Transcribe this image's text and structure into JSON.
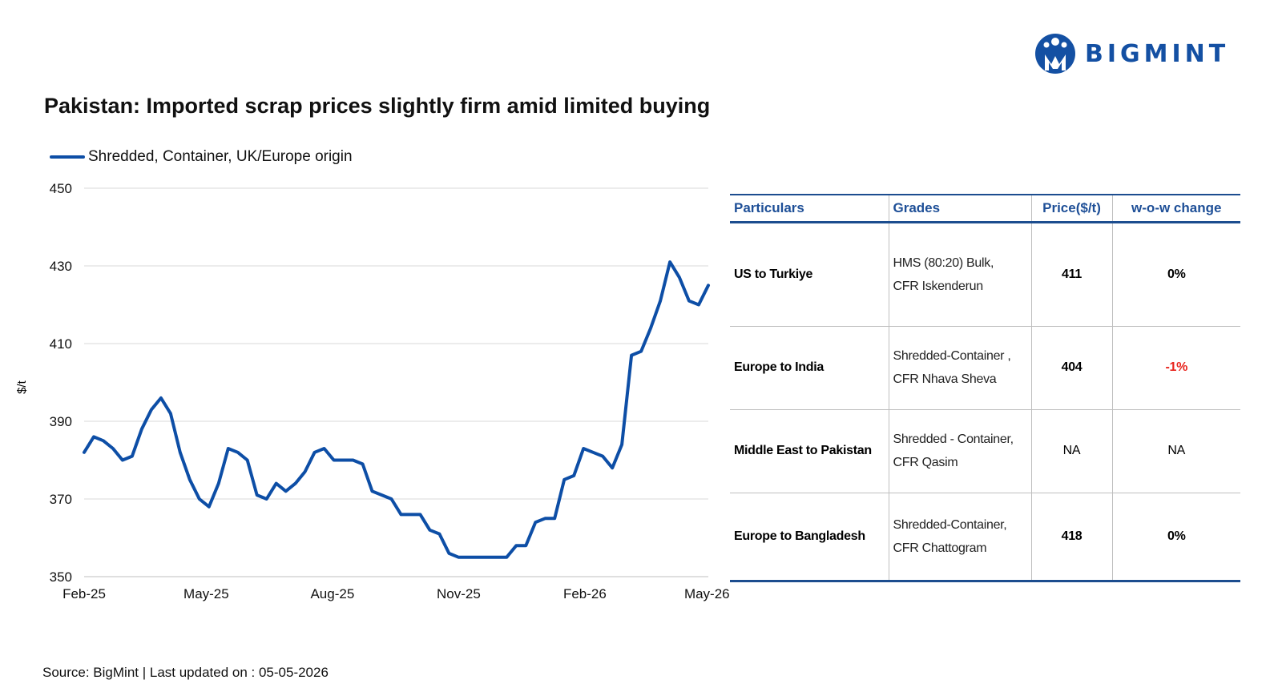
{
  "brand": {
    "name": "BIGMINT",
    "color": "#1450a3",
    "icon": "bigmint-logo-icon"
  },
  "title": "Pakistan: Imported scrap prices slightly firm amid limited buying",
  "source_note": "Source: BigMint | Last updated on : 05-05-2026",
  "chart_data": {
    "type": "line",
    "title": "Pakistan: Imported scrap prices slightly firm amid limited buying",
    "ylabel": "$/t",
    "xlabel": "",
    "ylim": [
      350,
      450
    ],
    "yticks": [
      "450",
      "430",
      "410",
      "390",
      "370",
      "350"
    ],
    "xticks": [
      "Feb-25",
      "May-25",
      "Aug-25",
      "Nov-25",
      "Feb-26",
      "May-26"
    ],
    "grid": "horizontal",
    "legend": "top-left",
    "series": [
      {
        "name": "Shredded, Container, UK/Europe origin",
        "color": "#0d4ea6",
        "x": [
          "2025-02-01",
          "2025-02-08",
          "2025-02-15",
          "2025-02-22",
          "2025-03-01",
          "2025-03-08",
          "2025-03-15",
          "2025-03-22",
          "2025-03-29",
          "2025-04-05",
          "2025-04-12",
          "2025-04-19",
          "2025-04-26",
          "2025-05-03",
          "2025-05-10",
          "2025-05-17",
          "2025-05-24",
          "2025-05-31",
          "2025-06-07",
          "2025-06-14",
          "2025-06-21",
          "2025-06-28",
          "2025-07-05",
          "2025-07-12",
          "2025-07-19",
          "2025-07-26",
          "2025-08-02",
          "2025-08-09",
          "2025-08-16",
          "2025-08-23",
          "2025-08-30",
          "2025-09-06",
          "2025-09-13",
          "2025-09-20",
          "2025-09-27",
          "2025-10-04",
          "2025-10-11",
          "2025-10-18",
          "2025-10-25",
          "2025-11-01",
          "2025-11-08",
          "2025-11-15",
          "2025-11-22",
          "2025-11-29",
          "2025-12-06",
          "2025-12-13",
          "2025-12-20",
          "2025-12-27",
          "2026-01-03",
          "2026-01-10",
          "2026-01-17",
          "2026-01-24",
          "2026-01-31",
          "2026-02-07",
          "2026-02-14",
          "2026-02-21",
          "2026-02-28",
          "2026-03-07",
          "2026-03-14",
          "2026-03-21",
          "2026-03-28",
          "2026-04-04",
          "2026-04-11",
          "2026-04-18",
          "2026-04-25",
          "2026-05-02"
        ],
        "values": [
          382,
          386,
          385,
          383,
          380,
          381,
          388,
          393,
          396,
          392,
          382,
          375,
          370,
          368,
          374,
          383,
          382,
          380,
          371,
          370,
          374,
          372,
          374,
          377,
          382,
          383,
          380,
          380,
          380,
          379,
          372,
          371,
          370,
          366,
          366,
          366,
          362,
          361,
          356,
          355,
          355,
          355,
          355,
          355,
          355,
          358,
          358,
          364,
          365,
          365,
          375,
          376,
          383,
          382,
          381,
          378,
          384,
          407,
          408,
          414,
          421,
          431,
          427,
          421,
          420,
          425
        ]
      }
    ]
  },
  "table": {
    "headers": {
      "particulars": "Particulars",
      "grades": "Grades",
      "price": "Price($/t)",
      "change": "w-o-w change"
    },
    "rows": [
      {
        "particulars": "US to Turkiye",
        "grade_line1": "HMS (80:20) Bulk,",
        "grade_line2": "CFR Iskenderun",
        "price": "411",
        "change": "0%",
        "change_color": "#000000"
      },
      {
        "particulars": "Europe to India",
        "grade_line1": "Shredded-Container ,",
        "grade_line2": "CFR Nhava Sheva",
        "price": "404",
        "change": "-1%",
        "change_color": "#e8241d"
      },
      {
        "particulars": "Middle East to Pakistan",
        "grade_line1": "Shredded - Container,",
        "grade_line2": "CFR Qasim",
        "price": "NA",
        "change": "NA",
        "change_color": "#000000"
      },
      {
        "particulars": "Europe to Bangladesh",
        "grade_line1": "Shredded-Container,",
        "grade_line2": "CFR Chattogram",
        "price": "418",
        "change": "0%",
        "change_color": "#000000"
      }
    ]
  }
}
